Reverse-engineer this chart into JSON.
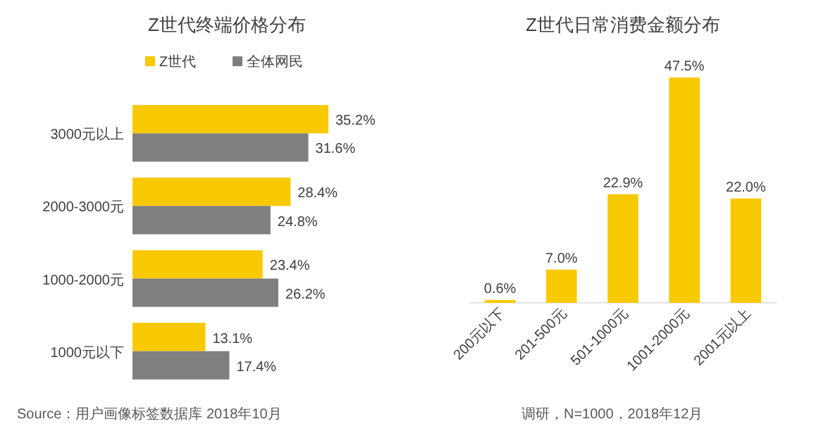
{
  "chart_data": [
    {
      "type": "bar",
      "orientation": "horizontal",
      "title": "Z世代终端价格分布",
      "categories": [
        "3000元以上",
        "2000-3000元",
        "1000-2000元",
        "1000元以下"
      ],
      "legend": "top",
      "series": [
        {
          "name": "Z世代",
          "color": "#f9c900",
          "values": [
            35.2,
            28.4,
            23.4,
            13.1
          ],
          "value_labels": [
            "35.2%",
            "28.4%",
            "23.4%",
            "13.1%"
          ]
        },
        {
          "name": "全体网民",
          "color": "#7f7f7f",
          "values": [
            31.6,
            24.8,
            26.2,
            17.4
          ],
          "value_labels": [
            "31.6%",
            "24.8%",
            "26.2%",
            "17.4%"
          ]
        }
      ],
      "annotations": [
        "Source：用户画像标签数据库 2018年10月"
      ]
    },
    {
      "type": "bar",
      "title": "Z世代日常消费金额分布",
      "categories": [
        "200元以下",
        "201-500元",
        "501-1000元",
        "1001-2000元",
        "2001元以上"
      ],
      "series": [
        {
          "color": "#f9c900",
          "values": [
            0.6,
            7.0,
            22.9,
            47.5,
            22.0
          ],
          "value_labels": [
            "0.6%",
            "7.0%",
            "22.9%",
            "47.5%",
            "22.0%"
          ]
        }
      ],
      "annotations": [
        "调研，N=1000，2018年12月"
      ]
    }
  ]
}
